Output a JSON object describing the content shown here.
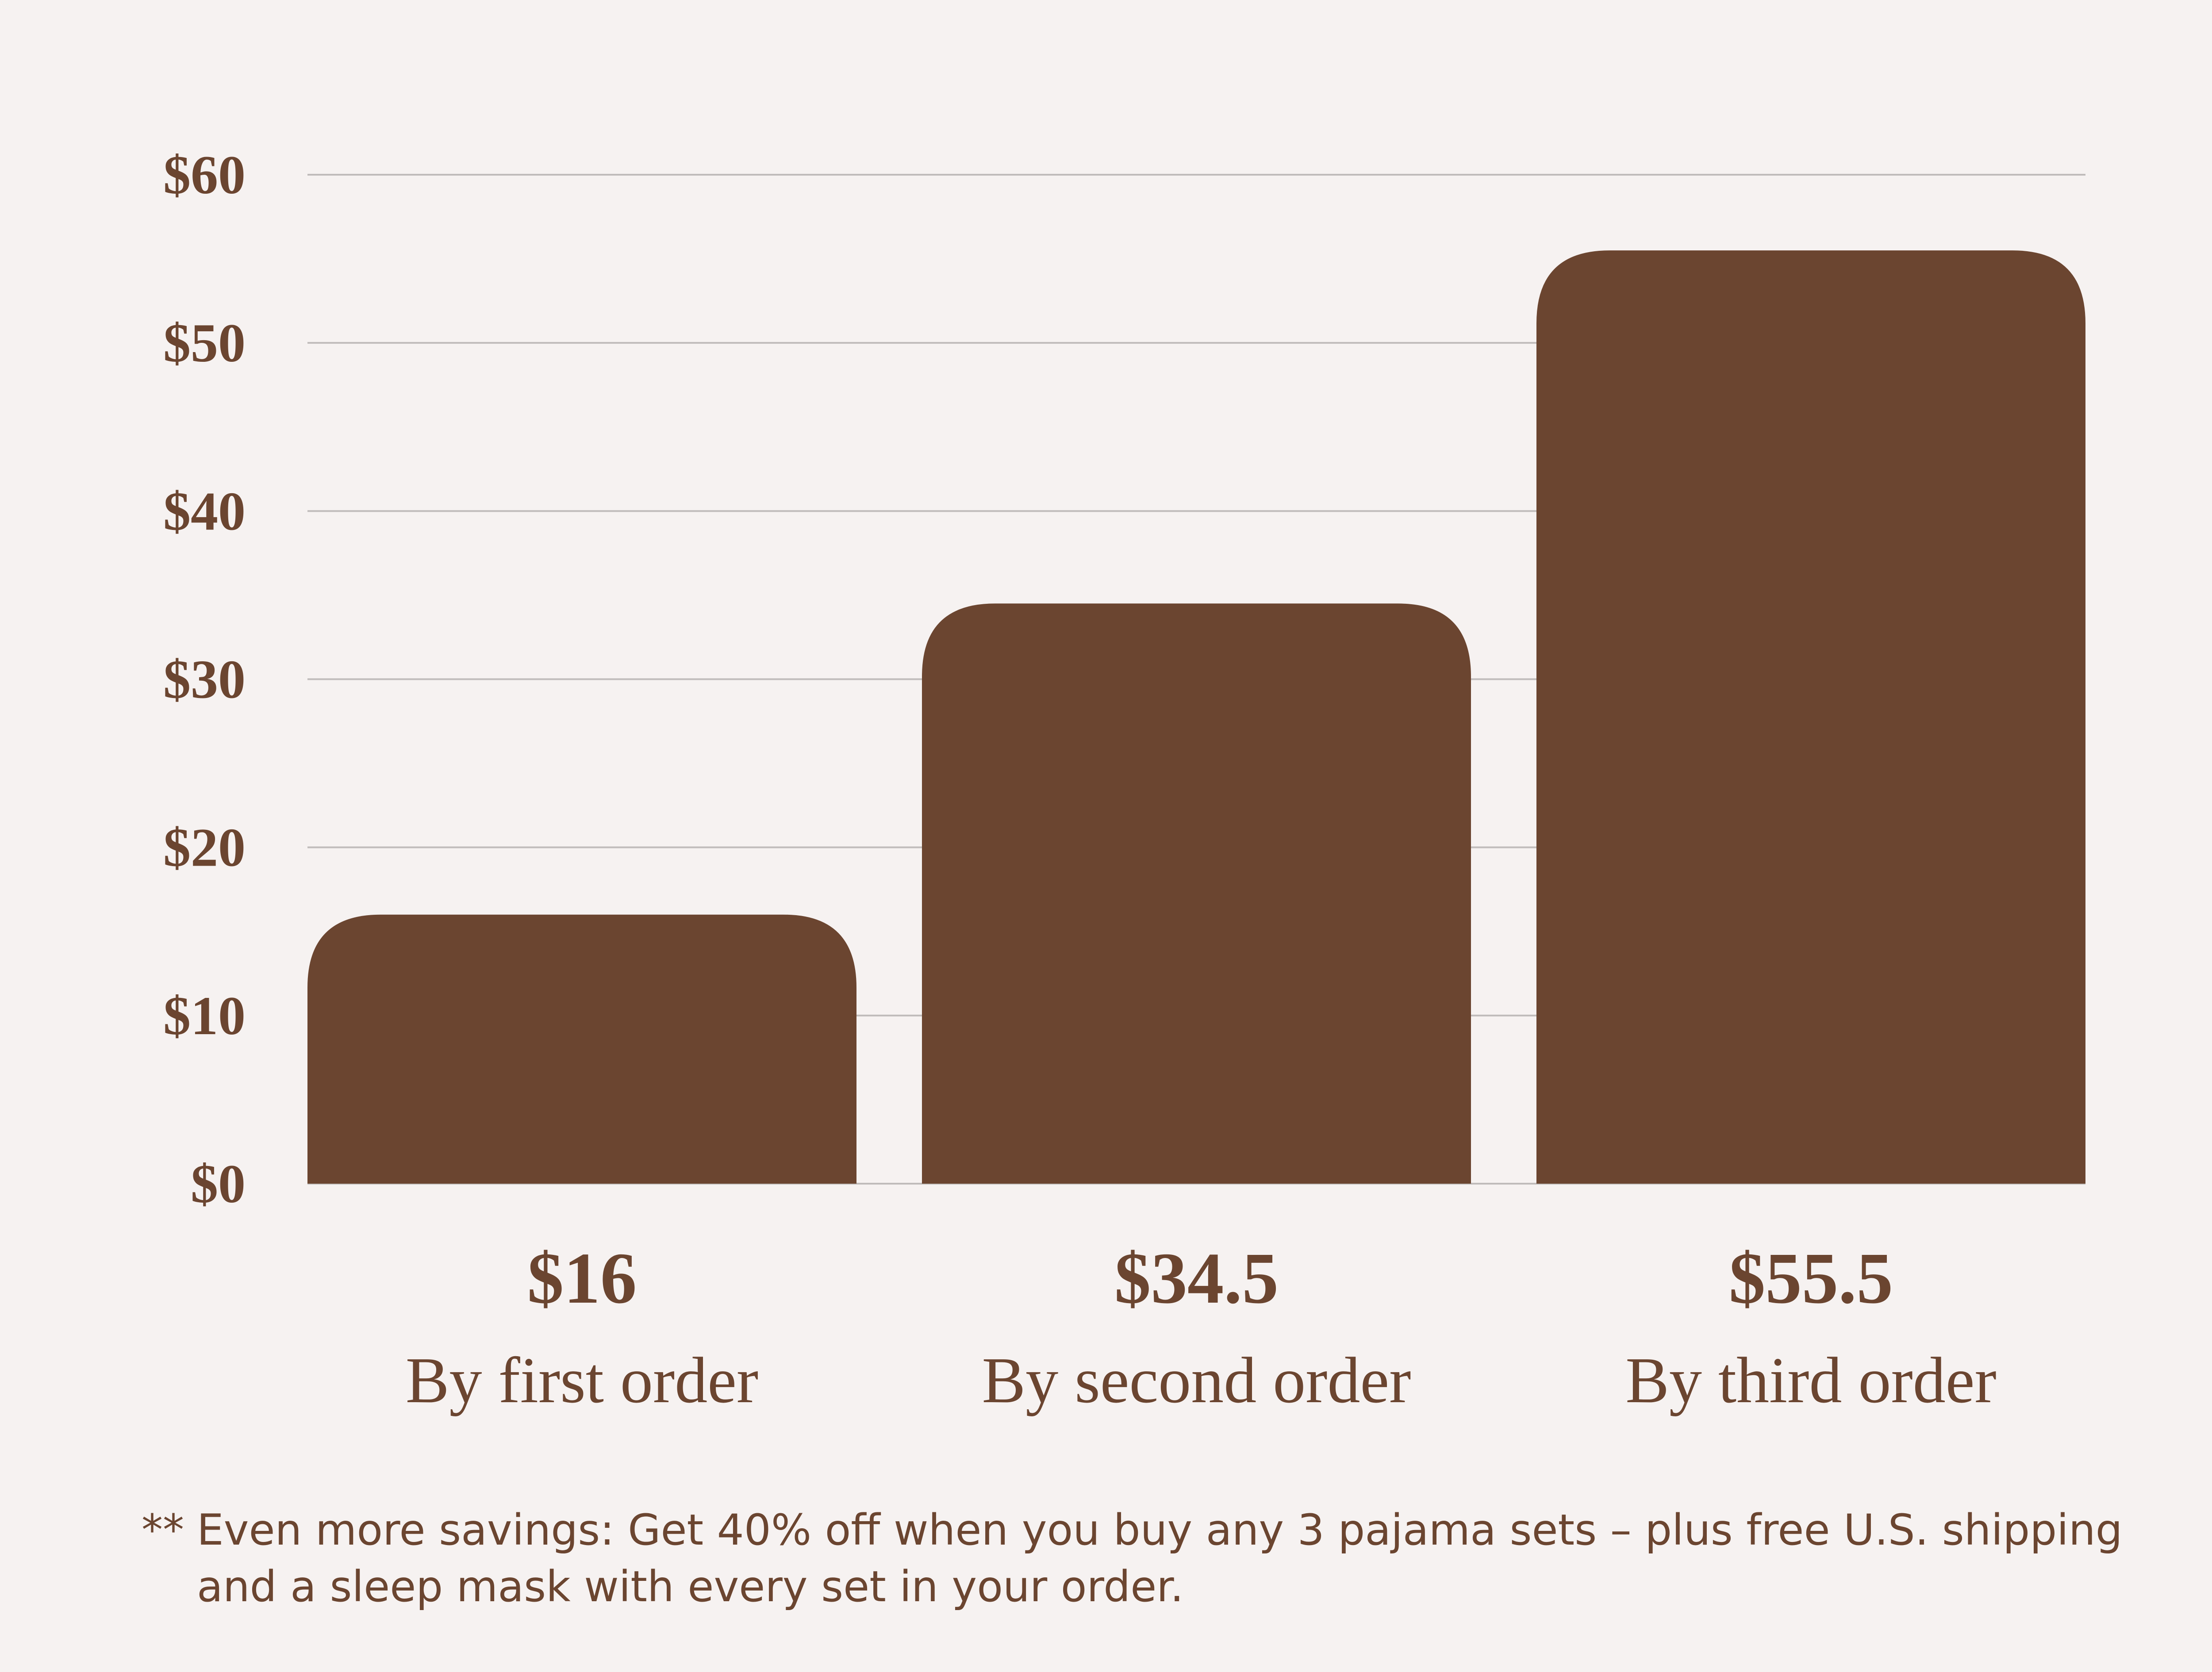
{
  "chart_data": {
    "type": "bar",
    "categories": [
      "By first order",
      "By second order",
      "By third order"
    ],
    "values": [
      16,
      34.5,
      55.5
    ],
    "value_labels": [
      "$16",
      "$34.5",
      "$55.5"
    ],
    "title": "",
    "xlabel": "",
    "ylabel": "",
    "ylim": [
      0,
      60
    ],
    "yticks": [
      0,
      10,
      20,
      30,
      40,
      50,
      60
    ],
    "ytick_labels": [
      "$0",
      "$10",
      "$20",
      "$30",
      "$40",
      "$50",
      "$60"
    ],
    "grid": true,
    "legend": "none",
    "colors": {
      "bar": "#6b4530",
      "grid": "#c0bcbb",
      "background": "#f6f2f1",
      "text": "#6b4530"
    }
  },
  "footnote": {
    "marker": "**",
    "line1": "Even more savings: Get 40% off when you buy any 3 pajama sets – plus free U.S. shipping",
    "line2": "and a sleep mask with every set in your order."
  }
}
